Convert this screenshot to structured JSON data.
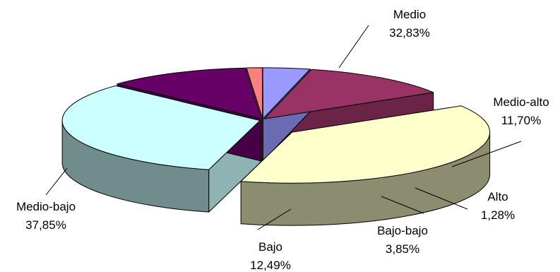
{
  "chart_data": {
    "type": "pie",
    "style": "3d-exploded",
    "title": "",
    "slices": [
      {
        "name": "Medio",
        "value_label": "32,83%",
        "value": 32.83,
        "color": "#ccffff"
      },
      {
        "name": "Medio-alto",
        "value_label": "11,70%",
        "value": 11.7,
        "color": "#660066"
      },
      {
        "name": "Alto",
        "value_label": "1,28%",
        "value": 1.28,
        "color": "#ff8080"
      },
      {
        "name": "Bajo-bajo",
        "value_label": "3,85%",
        "value": 3.85,
        "color": "#9999ff"
      },
      {
        "name": "Bajo",
        "value_label": "12,49%",
        "value": 12.49,
        "color": "#993366"
      },
      {
        "name": "Medio-bajo",
        "value_label": "37,85%",
        "value": 37.85,
        "color": "#ffffcc"
      }
    ],
    "legend": "none"
  }
}
